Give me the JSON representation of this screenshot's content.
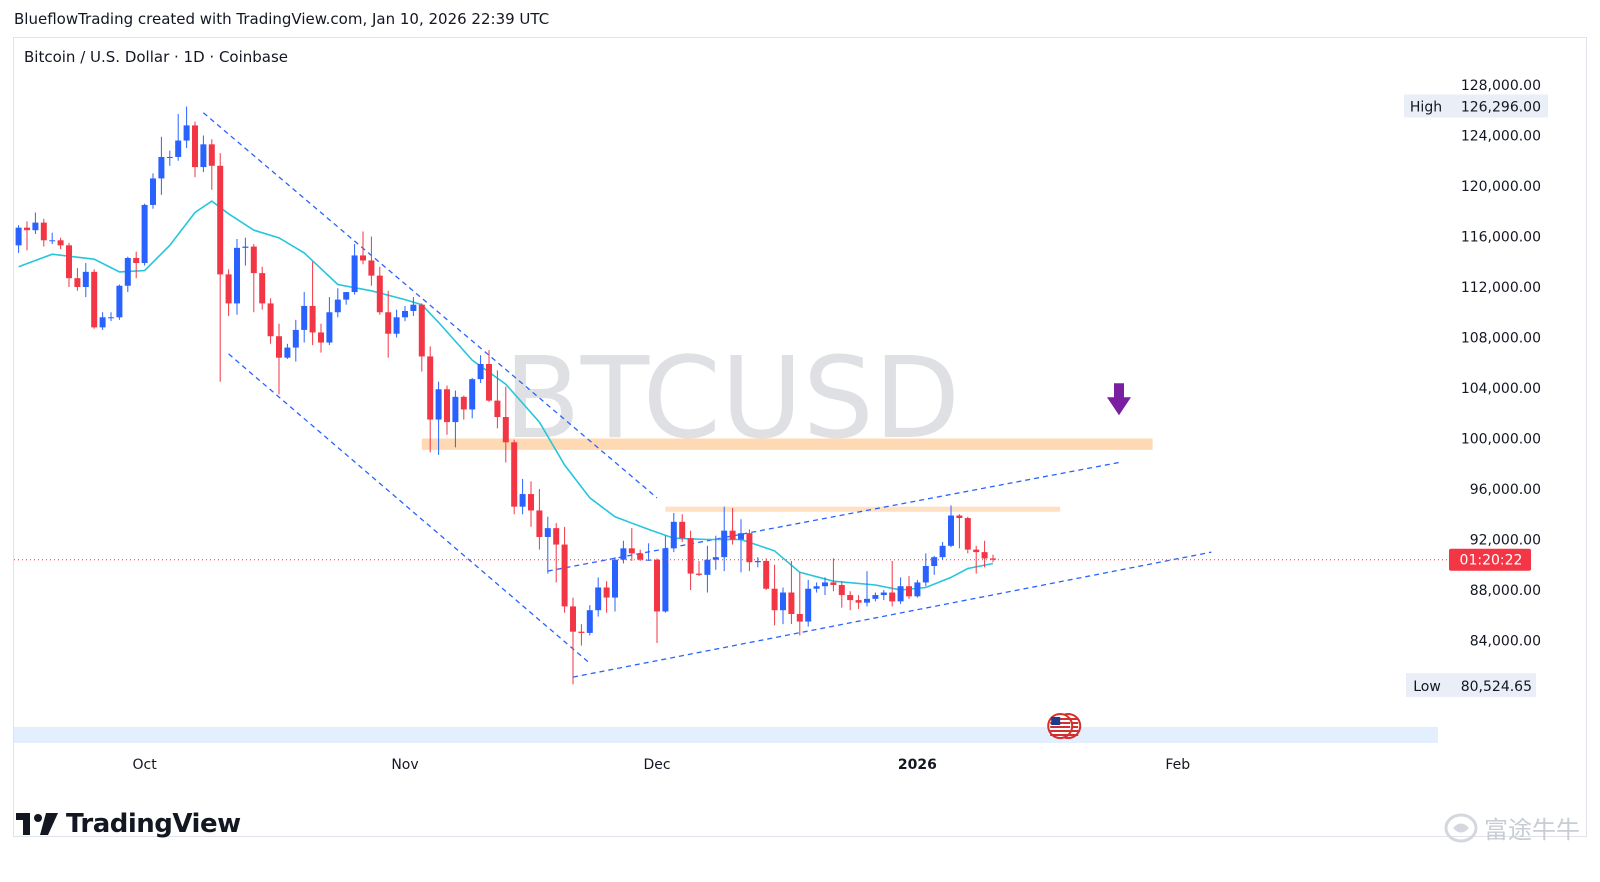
{
  "caption": "BlueflowTrading created with TradingView.com, Jan 10, 2026 22:39 UTC",
  "symbol_line": "Bitcoin / U.S. Dollar · 1D · Coinbase",
  "watermark": "BTCUSD",
  "brand": "TradingView",
  "corner_watermark": "富途牛牛",
  "colors": {
    "up": "#2962ff",
    "down": "#f23645",
    "ma": "#26c6da",
    "trend": "#2962ff",
    "zone": "#ffcc99",
    "arrow": "#7b1fa2",
    "price_line": "#f23645",
    "axis_text": "#131722"
  },
  "chart_data": {
    "type": "candlestick",
    "title": "Bitcoin / U.S. Dollar · 1D · Coinbase",
    "y_axis": {
      "ticks": [
        "128,000.00",
        "124,000.00",
        "120,000.00",
        "116,000.00",
        "112,000.00",
        "108,000.00",
        "104,000.00",
        "100,000.00",
        "96,000.00",
        "92,000.00",
        "88,000.00",
        "84,000.00"
      ],
      "tick_values": [
        128000,
        124000,
        120000,
        116000,
        112000,
        108000,
        104000,
        100000,
        96000,
        92000,
        88000,
        84000
      ],
      "range": [
        78000,
        130000
      ]
    },
    "x_axis": {
      "ticks": [
        {
          "label": "Oct",
          "date": "2025-10-01",
          "bold": false
        },
        {
          "label": "Nov",
          "date": "2025-11-01",
          "bold": false
        },
        {
          "label": "Dec",
          "date": "2025-12-01",
          "bold": false
        },
        {
          "label": "2026",
          "date": "2026-01-01",
          "bold": true
        },
        {
          "label": "Feb",
          "date": "2026-02-01",
          "bold": false
        }
      ],
      "range": [
        "2025-09-16",
        "2026-02-15"
      ]
    },
    "high_label": "High",
    "high_value": "126,296.00",
    "low_label": "Low",
    "low_value": "80,524.65",
    "countdown": "01:20:22",
    "last_price": 90400,
    "candles": [
      [
        "2025-09-16",
        115300,
        116900,
        114700,
        116700
      ],
      [
        "2025-09-17",
        116700,
        117200,
        114900,
        116500
      ],
      [
        "2025-09-18",
        116500,
        117900,
        116200,
        117100
      ],
      [
        "2025-09-19",
        117100,
        117400,
        115200,
        115700
      ],
      [
        "2025-09-20",
        115700,
        116300,
        115400,
        115700
      ],
      [
        "2025-09-21",
        115700,
        115900,
        115000,
        115300
      ],
      [
        "2025-09-22",
        115300,
        115500,
        112000,
        112700
      ],
      [
        "2025-09-23",
        112700,
        113500,
        111700,
        112000
      ],
      [
        "2025-09-24",
        112000,
        113900,
        111200,
        113200
      ],
      [
        "2025-09-25",
        113200,
        113400,
        108700,
        108800
      ],
      [
        "2025-09-26",
        108800,
        110000,
        108600,
        109600
      ],
      [
        "2025-09-27",
        109600,
        110000,
        109300,
        109600
      ],
      [
        "2025-09-28",
        109600,
        112200,
        109400,
        112100
      ],
      [
        "2025-09-29",
        112100,
        114400,
        111600,
        114300
      ],
      [
        "2025-09-30",
        114300,
        114800,
        112700,
        113900
      ],
      [
        "2025-10-01",
        113900,
        118600,
        113700,
        118500
      ],
      [
        "2025-10-02",
        118500,
        121000,
        118200,
        120600
      ],
      [
        "2025-10-03",
        120600,
        123900,
        119300,
        122300
      ],
      [
        "2025-10-04",
        122300,
        122800,
        121600,
        122300
      ],
      [
        "2025-10-05",
        122300,
        125700,
        122000,
        123600
      ],
      [
        "2025-10-06",
        123600,
        126296,
        123000,
        124800
      ],
      [
        "2025-10-07",
        124800,
        125100,
        120700,
        121500
      ],
      [
        "2025-10-08",
        121500,
        124000,
        121100,
        123300
      ],
      [
        "2025-10-09",
        123300,
        123700,
        119700,
        121600
      ],
      [
        "2025-10-10",
        121600,
        122600,
        104500,
        113000
      ],
      [
        "2025-10-11",
        113000,
        113400,
        109700,
        110700
      ],
      [
        "2025-10-12",
        110700,
        115800,
        109800,
        115100
      ],
      [
        "2025-10-13",
        115100,
        115900,
        113700,
        115200
      ],
      [
        "2025-10-14",
        115200,
        115400,
        110000,
        113100
      ],
      [
        "2025-10-15",
        113100,
        113600,
        110200,
        110700
      ],
      [
        "2025-10-16",
        110700,
        111100,
        107500,
        108100
      ],
      [
        "2025-10-17",
        108100,
        109100,
        103500,
        106400
      ],
      [
        "2025-10-18",
        106400,
        107500,
        106300,
        107200
      ],
      [
        "2025-10-19",
        107200,
        109400,
        106100,
        108600
      ],
      [
        "2025-10-20",
        108600,
        111600,
        107600,
        110500
      ],
      [
        "2025-10-21",
        110500,
        114000,
        107400,
        108400
      ],
      [
        "2025-10-22",
        108400,
        109100,
        106800,
        107600
      ],
      [
        "2025-10-23",
        107600,
        111200,
        107400,
        110000
      ],
      [
        "2025-10-24",
        110000,
        111900,
        109600,
        111000
      ],
      [
        "2025-10-25",
        111000,
        111600,
        110600,
        111600
      ],
      [
        "2025-10-26",
        111600,
        115400,
        111400,
        114500
      ],
      [
        "2025-10-27",
        114500,
        116400,
        113800,
        114100
      ],
      [
        "2025-10-28",
        114100,
        116000,
        112100,
        112900
      ],
      [
        "2025-10-29",
        112900,
        113600,
        109800,
        110000
      ],
      [
        "2025-10-30",
        110000,
        111700,
        106400,
        108300
      ],
      [
        "2025-10-31",
        108300,
        110200,
        108000,
        109600
      ],
      [
        "2025-11-01",
        109600,
        110500,
        109300,
        110100
      ],
      [
        "2025-11-02",
        110100,
        111200,
        109700,
        110600
      ],
      [
        "2025-11-03",
        110600,
        110700,
        105300,
        106500
      ],
      [
        "2025-11-04",
        106500,
        107300,
        98900,
        101500
      ],
      [
        "2025-11-05",
        101500,
        104500,
        98700,
        103900
      ],
      [
        "2025-11-06",
        103900,
        104200,
        100300,
        101300
      ],
      [
        "2025-11-07",
        101300,
        103800,
        99300,
        103300
      ],
      [
        "2025-11-08",
        103300,
        103400,
        101500,
        102300
      ],
      [
        "2025-11-09",
        102300,
        104800,
        101600,
        104700
      ],
      [
        "2025-11-10",
        104700,
        106600,
        104400,
        105900
      ],
      [
        "2025-11-11",
        105900,
        107000,
        102900,
        103000
      ],
      [
        "2025-11-12",
        103000,
        105400,
        100800,
        101700
      ],
      [
        "2025-11-13",
        101700,
        104100,
        98100,
        99700
      ],
      [
        "2025-11-14",
        99700,
        99900,
        94000,
        94600
      ],
      [
        "2025-11-15",
        94600,
        96800,
        94000,
        95600
      ],
      [
        "2025-11-16",
        95600,
        96600,
        93000,
        94300
      ],
      [
        "2025-11-17",
        94300,
        96000,
        91200,
        92200
      ],
      [
        "2025-11-18",
        92200,
        93800,
        89300,
        92900
      ],
      [
        "2025-11-19",
        92900,
        93300,
        88600,
        91600
      ],
      [
        "2025-11-20",
        91600,
        93000,
        86200,
        86700
      ],
      [
        "2025-11-21",
        86700,
        87400,
        80524.65,
        84700
      ],
      [
        "2025-11-22",
        84700,
        85300,
        83600,
        84600
      ],
      [
        "2025-11-23",
        84600,
        86800,
        84400,
        86400
      ],
      [
        "2025-11-24",
        86400,
        89000,
        85900,
        88200
      ],
      [
        "2025-11-25",
        88200,
        88700,
        86200,
        87400
      ],
      [
        "2025-11-26",
        87400,
        90600,
        86300,
        90400
      ],
      [
        "2025-11-27",
        90400,
        91900,
        90100,
        91300
      ],
      [
        "2025-11-28",
        91300,
        92900,
        90300,
        90900
      ],
      [
        "2025-11-29",
        90900,
        91200,
        90300,
        90400
      ],
      [
        "2025-11-30",
        90400,
        91700,
        90300,
        90400
      ],
      [
        "2025-12-01",
        90400,
        90500,
        83800,
        86300
      ],
      [
        "2025-12-02",
        86300,
        92300,
        86200,
        91300
      ],
      [
        "2025-12-03",
        91300,
        94100,
        91000,
        93400
      ],
      [
        "2025-12-04",
        93400,
        94000,
        91800,
        92100
      ],
      [
        "2025-12-05",
        92100,
        92700,
        88000,
        89300
      ],
      [
        "2025-12-06",
        89300,
        90300,
        89100,
        89200
      ],
      [
        "2025-12-07",
        89200,
        91500,
        87800,
        90400
      ],
      [
        "2025-12-08",
        90400,
        92300,
        89600,
        90600
      ],
      [
        "2025-12-09",
        90600,
        94600,
        89500,
        92700
      ],
      [
        "2025-12-10",
        92700,
        94500,
        91600,
        92000
      ],
      [
        "2025-12-11",
        92000,
        93600,
        89400,
        92500
      ],
      [
        "2025-12-12",
        92500,
        92800,
        89500,
        90200
      ],
      [
        "2025-12-13",
        90200,
        90600,
        89800,
        90300
      ],
      [
        "2025-12-14",
        90300,
        90500,
        88000,
        88100
      ],
      [
        "2025-12-15",
        88100,
        90000,
        85200,
        86400
      ],
      [
        "2025-12-16",
        86400,
        88200,
        85300,
        87800
      ],
      [
        "2025-12-17",
        87800,
        90300,
        85300,
        86100
      ],
      [
        "2025-12-18",
        86100,
        89400,
        84400,
        85500
      ],
      [
        "2025-12-19",
        85500,
        88800,
        85100,
        88100
      ],
      [
        "2025-12-20",
        88100,
        88600,
        87800,
        88300
      ],
      [
        "2025-12-21",
        88300,
        89000,
        87600,
        88600
      ],
      [
        "2025-12-22",
        88600,
        90500,
        87900,
        88400
      ],
      [
        "2025-12-23",
        88400,
        88700,
        86600,
        87600
      ],
      [
        "2025-12-24",
        87600,
        87900,
        86400,
        87200
      ],
      [
        "2025-12-25",
        87200,
        87600,
        86500,
        87000
      ],
      [
        "2025-12-26",
        87000,
        89500,
        86700,
        87300
      ],
      [
        "2025-12-27",
        87300,
        87800,
        87100,
        87600
      ],
      [
        "2025-12-28",
        87600,
        88000,
        87200,
        87800
      ],
      [
        "2025-12-29",
        87800,
        90300,
        86700,
        87100
      ],
      [
        "2025-12-30",
        87100,
        89000,
        86900,
        88300
      ],
      [
        "2025-12-31",
        88300,
        89100,
        87300,
        87500
      ],
      [
        "2026-01-01",
        87500,
        88800,
        87400,
        88600
      ],
      [
        "2026-01-02",
        88600,
        90900,
        88300,
        89900
      ],
      [
        "2026-01-03",
        89900,
        90700,
        89200,
        90600
      ],
      [
        "2026-01-04",
        90600,
        91800,
        90400,
        91500
      ],
      [
        "2026-01-05",
        91500,
        94700,
        91400,
        93900
      ],
      [
        "2026-01-06",
        93900,
        94000,
        91300,
        93700
      ],
      [
        "2026-01-07",
        93700,
        93800,
        90900,
        91200
      ],
      [
        "2026-01-08",
        91200,
        91500,
        89300,
        91000
      ],
      [
        "2026-01-09",
        91000,
        91900,
        89800,
        90500
      ],
      [
        "2026-01-10",
        90500,
        90800,
        90200,
        90400
      ]
    ],
    "ma_line": [
      [
        "2025-09-16",
        113600
      ],
      [
        "2025-09-20",
        114600
      ],
      [
        "2025-09-25",
        114200
      ],
      [
        "2025-09-28",
        113200
      ],
      [
        "2025-10-01",
        113300
      ],
      [
        "2025-10-04",
        115300
      ],
      [
        "2025-10-07",
        117900
      ],
      [
        "2025-10-09",
        118800
      ],
      [
        "2025-10-11",
        117800
      ],
      [
        "2025-10-14",
        116500
      ],
      [
        "2025-10-17",
        115900
      ],
      [
        "2025-10-20",
        114700
      ],
      [
        "2025-10-24",
        112200
      ],
      [
        "2025-10-28",
        111700
      ],
      [
        "2025-11-01",
        111000
      ],
      [
        "2025-11-03",
        110600
      ],
      [
        "2025-11-05",
        109200
      ],
      [
        "2025-11-09",
        106200
      ],
      [
        "2025-11-13",
        104300
      ],
      [
        "2025-11-17",
        101300
      ],
      [
        "2025-11-20",
        97900
      ],
      [
        "2025-11-23",
        95300
      ],
      [
        "2025-11-26",
        93800
      ],
      [
        "2025-11-30",
        92800
      ],
      [
        "2025-12-03",
        92100
      ],
      [
        "2025-12-07",
        92000
      ],
      [
        "2025-12-11",
        92000
      ],
      [
        "2025-12-15",
        91100
      ],
      [
        "2025-12-18",
        89400
      ],
      [
        "2025-12-22",
        88700
      ],
      [
        "2025-12-27",
        88400
      ],
      [
        "2025-12-30",
        88000
      ],
      [
        "2026-01-02",
        88200
      ],
      [
        "2026-01-05",
        89000
      ],
      [
        "2026-01-07",
        89700
      ],
      [
        "2026-01-10",
        90100
      ]
    ],
    "trend_lines": [
      {
        "from": [
          "2025-10-08",
          125800
        ],
        "to": [
          "2025-12-01",
          95300
        ]
      },
      {
        "from": [
          "2025-10-11",
          106700
        ],
        "to": [
          "2025-11-23",
          82200
        ]
      },
      {
        "from": [
          "2025-11-18",
          89500
        ],
        "to": [
          "2026-01-25",
          98100
        ]
      },
      {
        "from": [
          "2025-11-21",
          81100
        ],
        "to": [
          "2026-02-05",
          91000
        ]
      }
    ],
    "zones": [
      {
        "from": "2025-11-03",
        "to": "2026-01-29",
        "top": 100000,
        "bottom": 99100
      },
      {
        "from": "2025-12-02",
        "to": "2026-01-18",
        "top": 94600,
        "bottom": 94200
      }
    ],
    "arrow": {
      "date": "2026-01-25",
      "value": 102000,
      "direction": "down"
    },
    "event_marker": {
      "date": "2026-01-18",
      "icon": "us-flag-icon"
    }
  }
}
